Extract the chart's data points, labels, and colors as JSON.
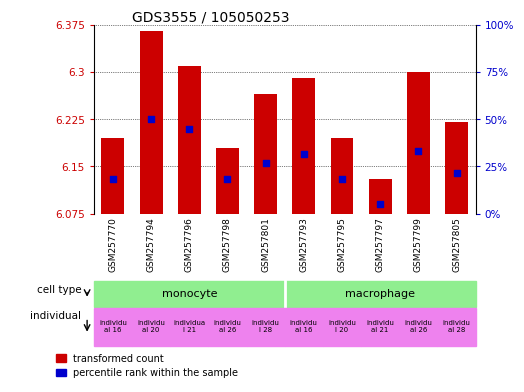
{
  "title": "GDS3555 / 105050253",
  "samples": [
    "GSM257770",
    "GSM257794",
    "GSM257796",
    "GSM257798",
    "GSM257801",
    "GSM257793",
    "GSM257795",
    "GSM257797",
    "GSM257799",
    "GSM257805"
  ],
  "bar_values": [
    6.195,
    6.365,
    6.31,
    6.18,
    6.265,
    6.29,
    6.195,
    6.13,
    6.3,
    6.22
  ],
  "blue_values": [
    6.13,
    6.225,
    6.21,
    6.13,
    6.155,
    6.17,
    6.13,
    6.09,
    6.175,
    6.14
  ],
  "ymin": 6.075,
  "ymax": 6.375,
  "yticks": [
    6.075,
    6.15,
    6.225,
    6.3,
    6.375
  ],
  "right_yticks": [
    0,
    25,
    50,
    75,
    100
  ],
  "bar_color": "#cc0000",
  "blue_color": "#0000cc",
  "bg_color": "#ffffff",
  "left_label_color": "#cc0000",
  "right_label_color": "#0000cc",
  "title_fontsize": 10,
  "tick_fontsize": 7.5,
  "sample_fontsize": 6.5,
  "legend_red": "transformed count",
  "legend_blue": "percentile rank within the sample",
  "cell_type_label": "cell type",
  "individual_label": "individual",
  "monocyte_color": "#90ee90",
  "macrophage_color": "#90ee90",
  "individual_color": "#ee82ee",
  "sample_bg_color": "#c8c8c8",
  "ind_labels": [
    "individu\nal 16",
    "individu\nal 20",
    "individua\nl 21",
    "individu\nal 26",
    "individu\nl 28",
    "individu\nal 16",
    "individu\nl 20",
    "individu\nal 21",
    "individu\nal 26",
    "individu\nal 28"
  ]
}
